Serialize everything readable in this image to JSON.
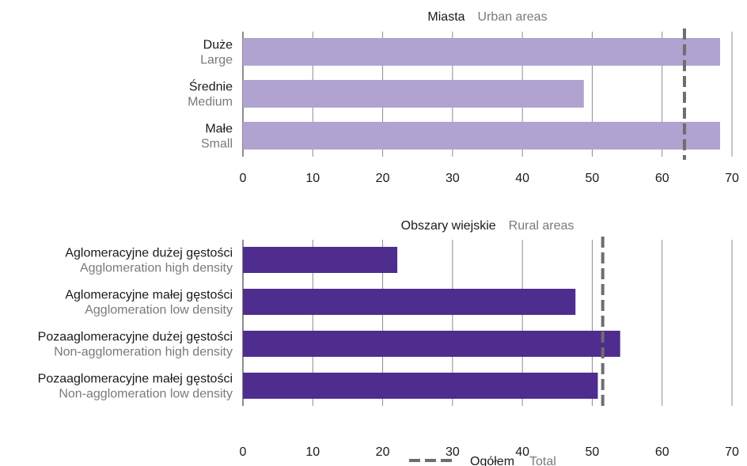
{
  "colors": {
    "urban_bar": "#b0a3d0",
    "rural_bar": "#4f2d8f",
    "total_line": "#6e6e6e",
    "grid": "#8c8c8c",
    "secondary_text": "#7a7a7a"
  },
  "legend": {
    "label_pl": "Ogółem",
    "label_en": "Total",
    "position": "bottom-center"
  },
  "chart_data": [
    {
      "type": "bar",
      "orientation": "horizontal",
      "title_pl": "Miasta",
      "title_en": "Urban areas",
      "categories": [
        {
          "pl": "Duże",
          "en": "Large"
        },
        {
          "pl": "Średnie",
          "en": "Medium"
        },
        {
          "pl": "Małe",
          "en": "Small"
        }
      ],
      "values": [
        68.3,
        48.8,
        68.3
      ],
      "reference_line": {
        "name": "Ogółem Total",
        "value": 63.2
      },
      "xlim": [
        0,
        70
      ],
      "xticks": [
        0,
        10,
        20,
        30,
        40,
        50,
        60,
        70
      ],
      "grid": true
    },
    {
      "type": "bar",
      "orientation": "horizontal",
      "title_pl": "Obszary wiejskie",
      "title_en": "Rural areas",
      "categories": [
        {
          "pl": "Aglomeracyjne dużej gęstości",
          "en": "Agglomeration high density"
        },
        {
          "pl": "Aglomeracyjne małej gęstości",
          "en": "Agglomeration low density"
        },
        {
          "pl": "Pozaaglomeracyjne dużej gęstości",
          "en": "Non-agglomeration high density"
        },
        {
          "pl": "Pozaaglomeracyjne małej gęstości",
          "en": "Non-agglomeration low density"
        }
      ],
      "values": [
        22.1,
        47.6,
        54.0,
        50.8
      ],
      "reference_line": {
        "name": "Ogółem Total",
        "value": 51.5
      },
      "xlim": [
        0,
        70
      ],
      "xticks": [
        0,
        10,
        20,
        30,
        40,
        50,
        60,
        70
      ],
      "grid": true
    }
  ]
}
